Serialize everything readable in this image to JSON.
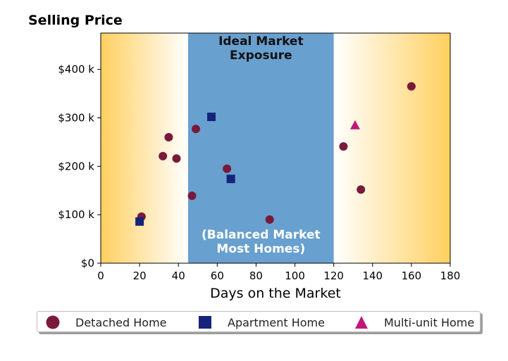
{
  "chart_data": {
    "type": "scatter",
    "title": "Selling Price",
    "xlabel": "Days on the Market",
    "ylabel": "",
    "xlim": [
      0,
      180
    ],
    "ylim": [
      0,
      475000
    ],
    "x_ticks": [
      0,
      20,
      40,
      60,
      80,
      100,
      120,
      140,
      160,
      180
    ],
    "y_ticks": [
      0,
      100000,
      200000,
      300000,
      400000
    ],
    "y_tick_labels": [
      "$0",
      "$100 k",
      "$200 k",
      "$300 k",
      "$400 k"
    ],
    "grid": false,
    "legend_position": "bottom",
    "zones": [
      {
        "type": "gradient",
        "x_range": [
          0,
          45
        ],
        "direction": "fade-right",
        "color": "#ffd060"
      },
      {
        "type": "solid",
        "x_range": [
          45,
          120
        ],
        "color": "#68a0cf"
      },
      {
        "type": "gradient",
        "x_range": [
          120,
          180
        ],
        "direction": "fade-left",
        "color": "#ffd060"
      }
    ],
    "annotations": [
      {
        "text_lines": [
          "Ideal Market",
          "Exposure"
        ],
        "position": "top",
        "color": "#111111"
      },
      {
        "text_lines": [
          "(Balanced Market",
          "Most Homes)"
        ],
        "position": "bottom",
        "color": "#ffffff"
      }
    ],
    "series": [
      {
        "name": "Detached Home",
        "marker": "circle",
        "color": "#7a1a3a",
        "points": [
          {
            "x": 21,
            "y": 96000
          },
          {
            "x": 32,
            "y": 221000
          },
          {
            "x": 35,
            "y": 260000
          },
          {
            "x": 39,
            "y": 216000
          },
          {
            "x": 47,
            "y": 139000
          },
          {
            "x": 49,
            "y": 277000
          },
          {
            "x": 65,
            "y": 195000
          },
          {
            "x": 87,
            "y": 90000
          },
          {
            "x": 125,
            "y": 241000
          },
          {
            "x": 134,
            "y": 152000
          },
          {
            "x": 160,
            "y": 365000
          }
        ]
      },
      {
        "name": "Apartment Home",
        "marker": "square",
        "color": "#15247a",
        "points": [
          {
            "x": 20,
            "y": 86000
          },
          {
            "x": 57,
            "y": 302000
          },
          {
            "x": 67,
            "y": 174000
          }
        ]
      },
      {
        "name": "Multi-unit Home",
        "marker": "triangle",
        "color": "#c0187a",
        "points": [
          {
            "x": 131,
            "y": 285000
          }
        ]
      }
    ]
  }
}
